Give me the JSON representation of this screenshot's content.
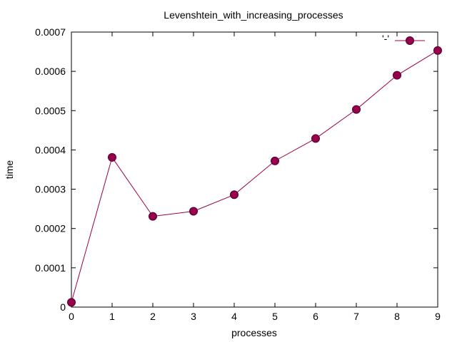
{
  "chart_data": {
    "type": "line",
    "title": "Levenshtein_with_increasing_processes",
    "xlabel": "processes",
    "ylabel": "time",
    "xlim": [
      0,
      9
    ],
    "ylim": [
      0,
      0.0007
    ],
    "xticks": [
      0,
      1,
      2,
      3,
      4,
      5,
      6,
      7,
      8,
      9
    ],
    "yticks": [
      {
        "value": 0,
        "label": "0"
      },
      {
        "value": 0.0001,
        "label": "0.0001"
      },
      {
        "value": 0.0002,
        "label": "0.0002"
      },
      {
        "value": 0.0003,
        "label": "0.0003"
      },
      {
        "value": 0.0004,
        "label": "0.0004"
      },
      {
        "value": 0.0005,
        "label": "0.0005"
      },
      {
        "value": 0.0006,
        "label": "0.0006"
      },
      {
        "value": 0.0007,
        "label": "0.0007"
      }
    ],
    "grid": false,
    "legend": {
      "position": "top-right",
      "label": "'-'"
    },
    "series": [
      {
        "color": "#99004c",
        "marker": "circle",
        "x": [
          0,
          1,
          2,
          3,
          4,
          5,
          6,
          7,
          8,
          9
        ],
        "y": [
          1.2e-05,
          0.000381,
          0.000231,
          0.000244,
          0.000286,
          0.000372,
          0.000429,
          0.000503,
          0.00059,
          0.000653
        ]
      }
    ]
  }
}
